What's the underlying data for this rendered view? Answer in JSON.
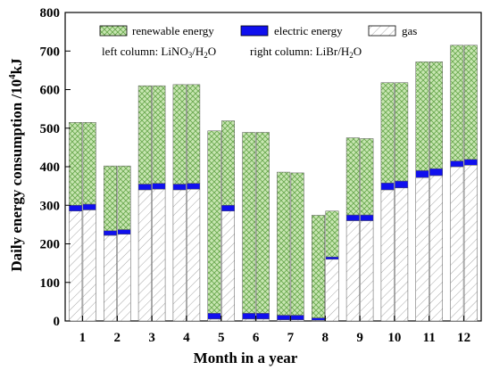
{
  "chart_data": {
    "type": "bar",
    "stacked": true,
    "grouped": true,
    "xlabel": "Month in a year",
    "ylabel_main": "Daily energy consumption /10",
    "ylabel_sup": "4",
    "ylabel_unit": "kJ",
    "ylim": [
      0,
      800
    ],
    "yticks": [
      0,
      100,
      200,
      300,
      400,
      500,
      600,
      700,
      800
    ],
    "categories": [
      "1",
      "2",
      "3",
      "4",
      "5",
      "6",
      "7",
      "8",
      "9",
      "10",
      "11",
      "12"
    ],
    "series": [
      {
        "name": "gas",
        "color": "#ffffff",
        "pattern": "diagonal-hatch"
      },
      {
        "name": "electric energy",
        "color": "#1010ee",
        "pattern": "solid"
      },
      {
        "name": "renewable energy",
        "color": "#a8d48a",
        "pattern": "cross-hatch"
      }
    ],
    "groups": [
      {
        "name": "LiNO3/H2O",
        "position": "left"
      },
      {
        "name": "LiBr/H2O",
        "position": "right"
      }
    ],
    "data": {
      "LiNO3/H2O": {
        "gas": [
          285,
          222,
          340,
          340,
          5,
          5,
          3,
          2,
          260,
          340,
          372,
          400
        ],
        "electric energy": [
          15,
          12,
          15,
          15,
          15,
          15,
          12,
          6,
          15,
          18,
          18,
          15
        ],
        "renewable energy": [
          215,
          168,
          255,
          258,
          473,
          469,
          371,
          266,
          200,
          260,
          282,
          300
        ]
      },
      "LiBr/H2O": {
        "gas": [
          288,
          225,
          342,
          342,
          285,
          5,
          3,
          160,
          260,
          345,
          377,
          404
        ],
        "electric energy": [
          15,
          12,
          15,
          15,
          15,
          15,
          12,
          6,
          15,
          18,
          18,
          15
        ],
        "renewable energy": [
          212,
          165,
          253,
          256,
          219,
          469,
          369,
          119,
          198,
          255,
          277,
          296
        ]
      }
    },
    "legend": {
      "placement": "top",
      "entries": [
        "renewable energy",
        "electric energy",
        "gas"
      ]
    },
    "annotations": {
      "left_label": "left column: LiNO",
      "left_sub1": "3",
      "left_mid": "/H",
      "left_sub2": "2",
      "left_end": "O",
      "right_label": "right column: LiBr/H",
      "right_sub": "2",
      "right_end": "O"
    },
    "grid": false
  }
}
